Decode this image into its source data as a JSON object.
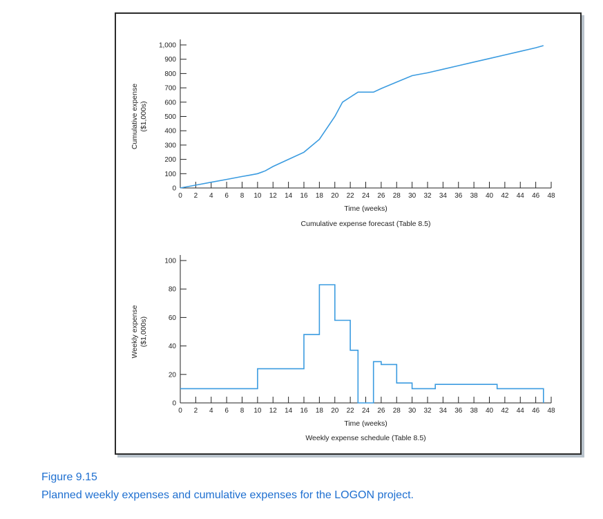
{
  "figure": {
    "label": "Figure 9.15",
    "description": "Planned weekly expenses and cumulative expenses for the LOGON project.",
    "line_color": "#3a9be0",
    "caption_color": "#1e6fd0"
  },
  "chart_data": [
    {
      "type": "line",
      "title": "Cumulative expense forecast (Table 8.5)",
      "xlabel": "Time (weeks)",
      "ylabel": [
        "Cumulative expense",
        "($1,000s)"
      ],
      "xlim": [
        0,
        48
      ],
      "ylim": [
        0,
        1000
      ],
      "x_ticks": [
        0,
        2,
        4,
        6,
        8,
        10,
        12,
        14,
        16,
        18,
        20,
        22,
        24,
        26,
        28,
        30,
        32,
        34,
        36,
        38,
        40,
        42,
        44,
        46,
        48
      ],
      "y_ticks": [
        0,
        100,
        200,
        300,
        400,
        500,
        600,
        700,
        800,
        900,
        1000
      ],
      "y_tick_labels": [
        "0",
        "100",
        "200",
        "300",
        "400",
        "500",
        "600",
        "700",
        "800",
        "900",
        "1,000"
      ],
      "grid": false,
      "series": [
        {
          "x": [
            0,
            2,
            4,
            6,
            8,
            9,
            10,
            11,
            12,
            14,
            16,
            18,
            20,
            21,
            23,
            24,
            25,
            26,
            28,
            30,
            31,
            32,
            34,
            36,
            38,
            40,
            42,
            44,
            46,
            47
          ],
          "y": [
            0,
            20,
            40,
            60,
            80,
            90,
            100,
            120,
            150,
            200,
            250,
            340,
            500,
            600,
            670,
            670,
            670,
            695,
            740,
            785,
            795,
            805,
            830,
            855,
            880,
            905,
            930,
            955,
            980,
            995
          ]
        }
      ]
    },
    {
      "type": "line",
      "title": "Weekly expense schedule (Table 8.5)",
      "xlabel": "Time (weeks)",
      "ylabel": [
        "Weekly expense",
        "($1,000s)"
      ],
      "xlim": [
        0,
        48
      ],
      "ylim": [
        0,
        100
      ],
      "x_ticks": [
        0,
        2,
        4,
        6,
        8,
        10,
        12,
        14,
        16,
        18,
        20,
        22,
        24,
        26,
        28,
        30,
        32,
        34,
        36,
        38,
        40,
        42,
        44,
        46,
        48
      ],
      "y_ticks": [
        0,
        20,
        40,
        60,
        80,
        100
      ],
      "grid": false,
      "step": true,
      "series": [
        {
          "x": [
            0,
            10,
            10,
            16,
            16,
            18,
            18,
            20,
            20,
            22,
            22,
            23,
            23,
            25,
            25,
            26,
            26,
            28,
            28,
            30,
            30,
            33,
            33,
            41,
            41,
            47,
            47
          ],
          "y": [
            10,
            10,
            24,
            24,
            48,
            48,
            83,
            83,
            58,
            58,
            37,
            37,
            0,
            0,
            29,
            29,
            27,
            27,
            14,
            14,
            10,
            10,
            13,
            13,
            10,
            10,
            0
          ]
        }
      ]
    }
  ]
}
